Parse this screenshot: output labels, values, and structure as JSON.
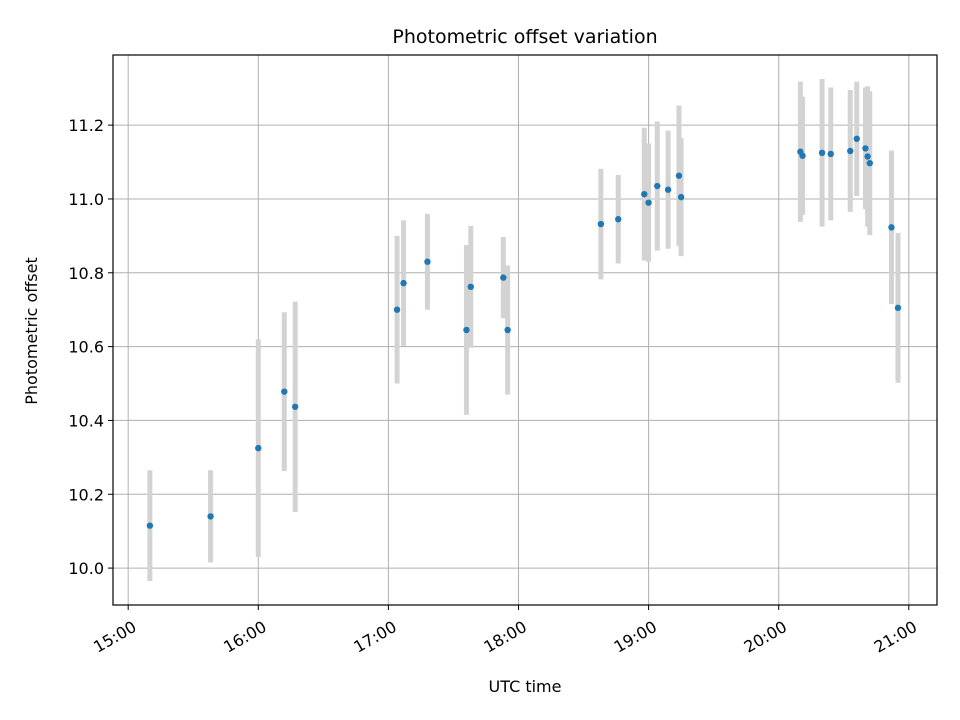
{
  "chart_data": {
    "type": "scatter",
    "title": "Photometric offset variation",
    "xlabel": "UTC time",
    "ylabel": "Photometric offset",
    "x_axis": {
      "kind": "time",
      "ticks": [
        "15:00",
        "16:00",
        "17:00",
        "18:00",
        "19:00",
        "20:00",
        "21:00"
      ],
      "range": [
        "14:53",
        "21:13"
      ]
    },
    "y_axis": {
      "ticks": [
        "10.0",
        "10.2",
        "10.4",
        "10.6",
        "10.8",
        "11.0",
        "11.2"
      ],
      "range": [
        9.9,
        11.39
      ]
    },
    "grid": true,
    "colors": {
      "point": "#1f77b4",
      "errorbar": "#d3d3d3",
      "grid": "#b0b0b0"
    },
    "series": [
      {
        "x": [
          "15:10",
          "15:38",
          "16:00",
          "16:12",
          "16:17",
          "17:04",
          "17:07",
          "17:18",
          "17:36",
          "17:38",
          "17:53",
          "17:55",
          "18:38",
          "18:46",
          "18:58",
          "19:00",
          "19:04",
          "19:09",
          "19:14",
          "19:15",
          "20:10",
          "20:11",
          "20:20",
          "20:24",
          "20:33",
          "20:36",
          "20:40",
          "20:41",
          "20:42",
          "20:52",
          "20:55"
        ],
        "y": [
          10.115,
          10.14,
          10.325,
          10.478,
          10.437,
          10.7,
          10.772,
          10.83,
          10.645,
          10.762,
          10.787,
          10.645,
          10.932,
          10.945,
          11.013,
          10.99,
          11.035,
          11.025,
          11.063,
          11.005,
          11.128,
          11.117,
          11.125,
          11.122,
          11.13,
          11.163,
          11.137,
          11.115,
          11.097,
          10.923,
          10.705
        ],
        "yerr": [
          0.15,
          0.125,
          0.295,
          0.215,
          0.285,
          0.2,
          0.17,
          0.13,
          0.23,
          0.165,
          0.11,
          0.175,
          0.15,
          0.12,
          0.18,
          0.16,
          0.175,
          0.16,
          0.19,
          0.16,
          0.19,
          0.16,
          0.2,
          0.18,
          0.165,
          0.155,
          0.165,
          0.19,
          0.195,
          0.208,
          0.203
        ]
      }
    ]
  }
}
